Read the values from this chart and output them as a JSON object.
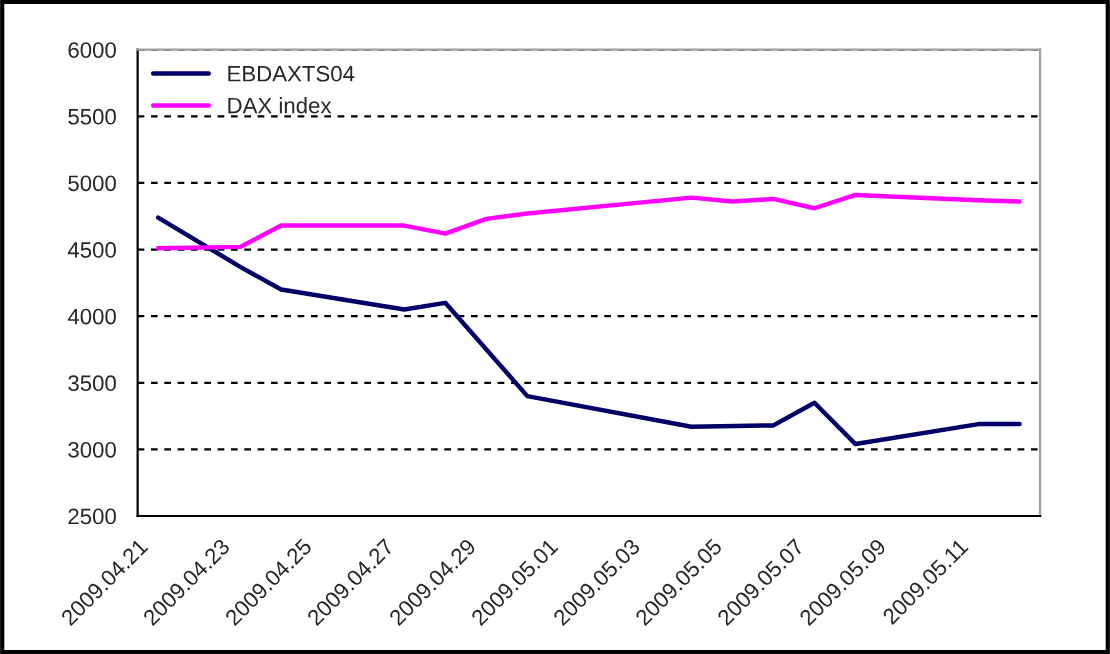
{
  "chart_data": {
    "type": "line",
    "series": [
      {
        "name": "EBDAXTS04",
        "color": "#000066",
        "x": [
          "2009-04-21T12:00",
          "2009-04-23T12:00",
          "2009-04-24T12:00",
          "2009-04-27T12:00",
          "2009-04-28T12:00",
          "2009-04-30T12:00",
          "2009-05-04T12:00",
          "2009-05-06T12:00",
          "2009-05-07T12:00",
          "2009-05-08T12:00",
          "2009-05-11T12:00",
          "2009-05-12T12:00"
        ],
        "values": [
          4740,
          4370,
          4200,
          4050,
          4100,
          3400,
          3170,
          3180,
          3350,
          3040,
          3190,
          3190
        ]
      },
      {
        "name": "DAX index",
        "color": "#ff00ff",
        "x": [
          "2009-04-21T12:00",
          "2009-04-23T12:00",
          "2009-04-24T12:00",
          "2009-04-27T12:00",
          "2009-04-28T12:00",
          "2009-04-29T12:00",
          "2009-04-30T12:00",
          "2009-05-04T12:00",
          "2009-05-05T12:00",
          "2009-05-06T12:00",
          "2009-05-07T12:00",
          "2009-05-08T12:00",
          "2009-05-11T12:00",
          "2009-05-12T12:00"
        ],
        "values": [
          4510,
          4520,
          4680,
          4680,
          4620,
          4730,
          4770,
          4890,
          4860,
          4880,
          4810,
          4910,
          4870,
          4860
        ]
      }
    ],
    "xlim": [
      "2009-04-21",
      "2009-05-13"
    ],
    "xticks": [
      {
        "value": "2009-04-21",
        "label": "2009.04.21"
      },
      {
        "value": "2009-04-23",
        "label": "2009.04.23"
      },
      {
        "value": "2009-04-25",
        "label": "2009.04.25"
      },
      {
        "value": "2009-04-27",
        "label": "2009.04.27"
      },
      {
        "value": "2009-04-29",
        "label": "2009.04.29"
      },
      {
        "value": "2009-05-01",
        "label": "2009.05.01"
      },
      {
        "value": "2009-05-03",
        "label": "2009.05.03"
      },
      {
        "value": "2009-05-05",
        "label": "2009.05.05"
      },
      {
        "value": "2009-05-07",
        "label": "2009.05.07"
      },
      {
        "value": "2009-05-09",
        "label": "2009.05.09"
      },
      {
        "value": "2009-05-11",
        "label": "2009.05.11"
      },
      {
        "value": "2009-05-13",
        "label": null
      }
    ],
    "ylim": [
      2500,
      6000
    ],
    "yticks": [
      2500,
      3000,
      3500,
      4000,
      4500,
      5000,
      5500,
      6000
    ],
    "grid": "y",
    "legend": "top left",
    "marker": "none",
    "line_style": "solid"
  }
}
